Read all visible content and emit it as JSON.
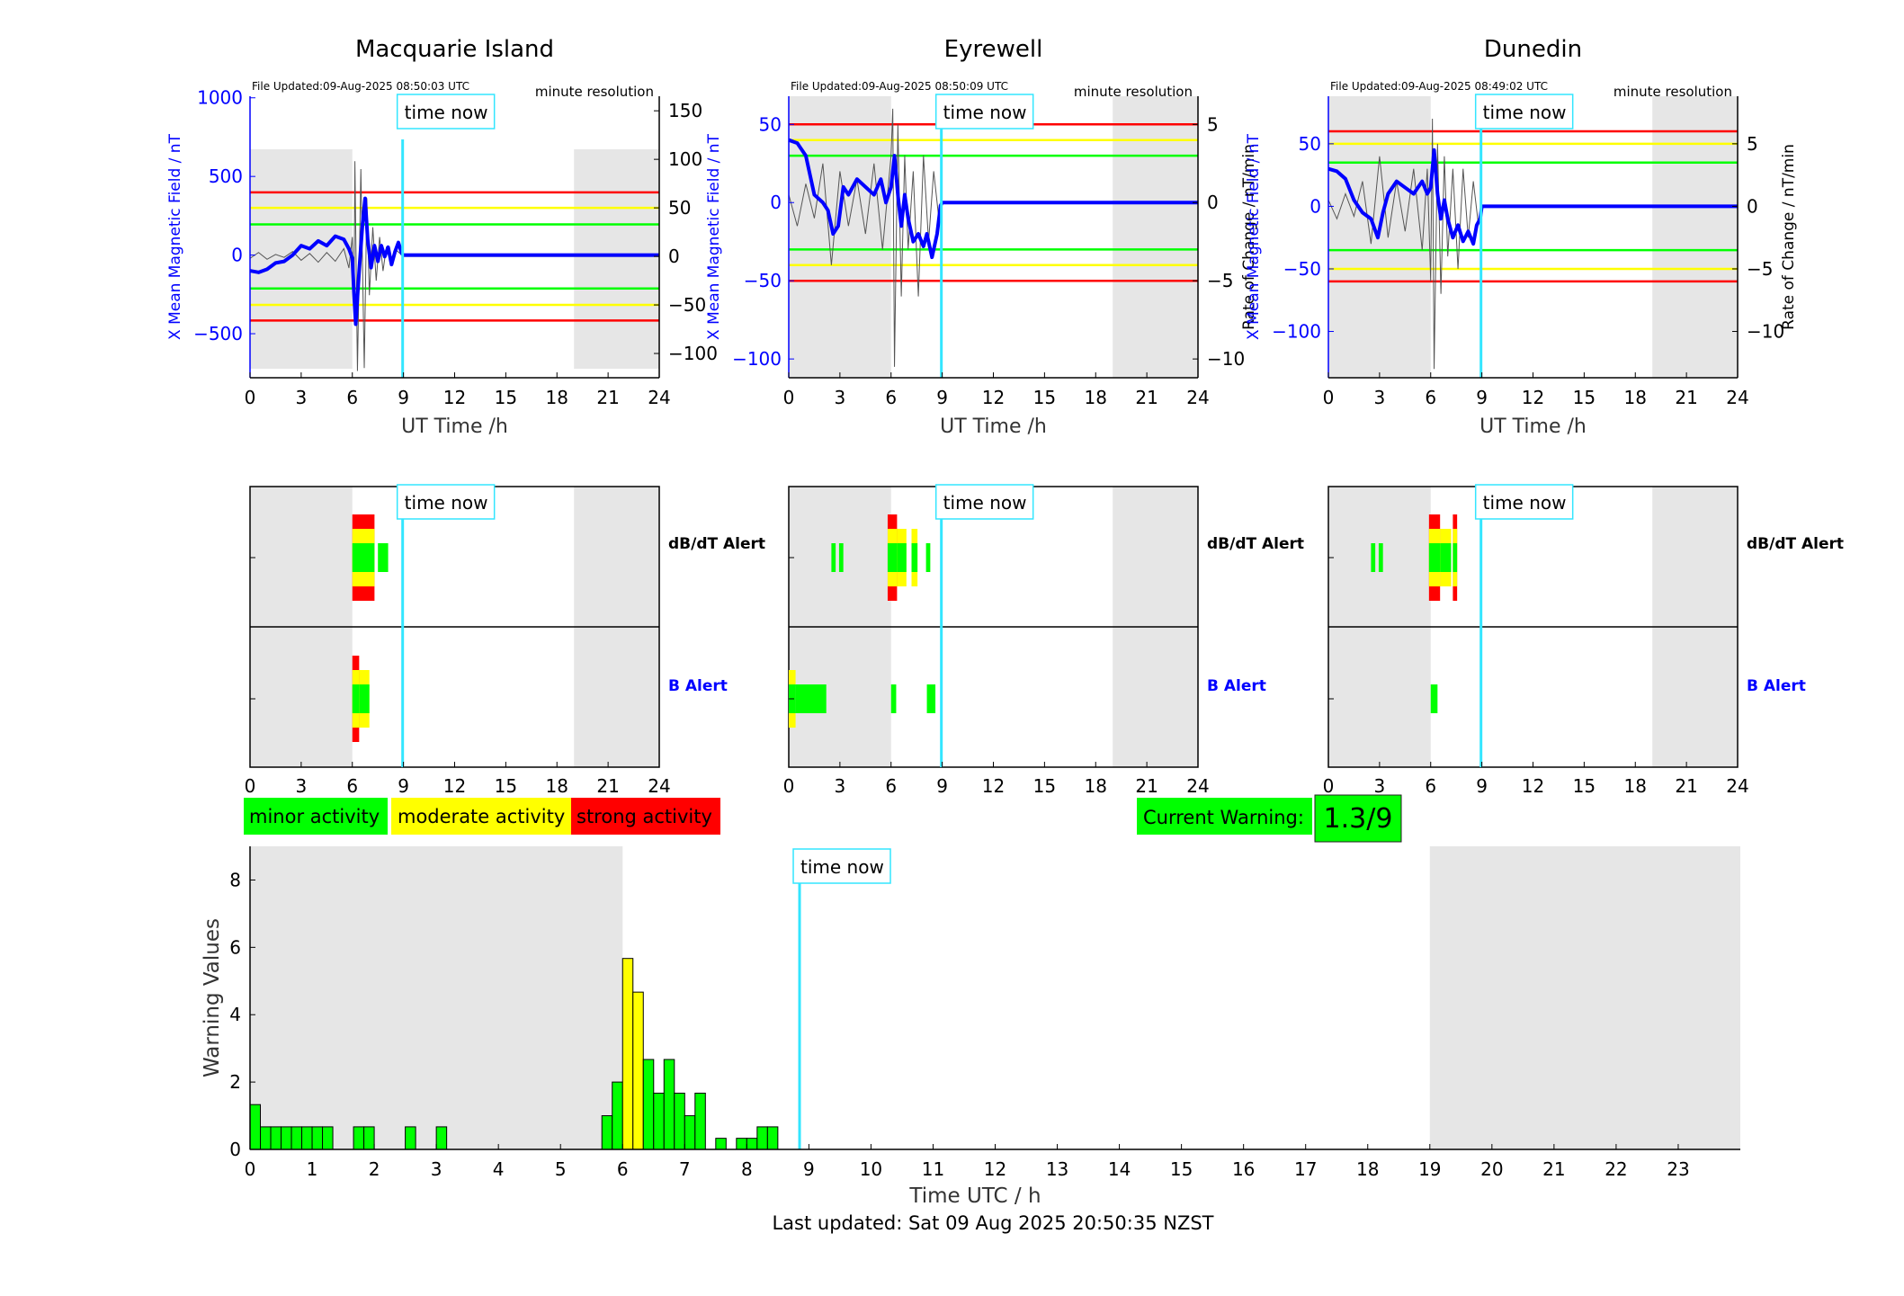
{
  "colors": {
    "shade": "#e6e6e6",
    "blue": "#0000ff",
    "cyan": "#33e6ff",
    "red": "#ff0000",
    "yellow": "#ffff00",
    "green": "#00ff00",
    "black": "#000000"
  },
  "legend": {
    "minor": "minor activity",
    "moderate": "moderate activity",
    "strong": "strong activity"
  },
  "current_warning": {
    "label": "Current Warning:",
    "value": "1.3/9"
  },
  "footer": "Last updated: Sat 09 Aug 2025 20:50:35 NZST",
  "chart_data": [
    {
      "type": "line",
      "title": "Macquarie Island",
      "file_updated": "File Updated:09-Aug-2025 08:50:03 UTC",
      "resolution": "minute resolution",
      "time_now_label": "time now",
      "time_now": 8.95,
      "xlabel": "UT Time /h",
      "ylabel_left": "X Mean Magnetic Field / nT",
      "ylabel_right": "",
      "xlim": [
        0,
        24
      ],
      "xticks": [
        0,
        3,
        6,
        9,
        12,
        15,
        18,
        21,
        24
      ],
      "ylim_left": [
        -780,
        1010
      ],
      "yticks_left": [
        -500,
        0,
        500,
        1000
      ],
      "ylim_right": [
        -125,
        165
      ],
      "yticks_right": [
        -100,
        -50,
        0,
        50,
        100,
        150
      ],
      "night_shading": [
        [
          0,
          6
        ],
        [
          19,
          24
        ]
      ],
      "thresholds_right": {
        "red": 66,
        "yellow": 50,
        "green": 33
      },
      "series_x_mean": [
        [
          0,
          -100
        ],
        [
          0.5,
          -110
        ],
        [
          1,
          -90
        ],
        [
          1.5,
          -50
        ],
        [
          2,
          -40
        ],
        [
          2.5,
          0
        ],
        [
          3,
          60
        ],
        [
          3.5,
          40
        ],
        [
          4,
          90
        ],
        [
          4.5,
          60
        ],
        [
          5,
          120
        ],
        [
          5.5,
          100
        ],
        [
          5.8,
          40
        ],
        [
          6,
          -20
        ],
        [
          6.1,
          -250
        ],
        [
          6.2,
          -440
        ],
        [
          6.4,
          -100
        ],
        [
          6.6,
          200
        ],
        [
          6.75,
          360
        ],
        [
          6.9,
          100
        ],
        [
          7.1,
          -80
        ],
        [
          7.3,
          60
        ],
        [
          7.5,
          -40
        ],
        [
          7.7,
          60
        ],
        [
          7.9,
          -10
        ],
        [
          8.1,
          50
        ],
        [
          8.3,
          -60
        ],
        [
          8.5,
          20
        ],
        [
          8.7,
          80
        ],
        [
          8.9,
          10
        ],
        [
          9,
          0
        ],
        [
          24,
          0
        ]
      ],
      "series_rate_of_change": [
        [
          0,
          -2
        ],
        [
          0.5,
          4
        ],
        [
          1,
          -3
        ],
        [
          1.5,
          2
        ],
        [
          2,
          -1
        ],
        [
          2.5,
          5
        ],
        [
          3,
          -4
        ],
        [
          3.5,
          3
        ],
        [
          4,
          -6
        ],
        [
          4.5,
          4
        ],
        [
          5,
          -5
        ],
        [
          5.5,
          8
        ],
        [
          5.8,
          -12
        ],
        [
          6,
          20
        ],
        [
          6.1,
          -55
        ],
        [
          6.15,
          98
        ],
        [
          6.3,
          -118
        ],
        [
          6.5,
          90
        ],
        [
          6.7,
          -115
        ],
        [
          6.85,
          60
        ],
        [
          7,
          -40
        ],
        [
          7.2,
          30
        ],
        [
          7.4,
          -25
        ],
        [
          7.6,
          20
        ],
        [
          7.8,
          -15
        ],
        [
          8,
          10
        ],
        [
          8.3,
          -8
        ],
        [
          8.6,
          6
        ],
        [
          9,
          0
        ],
        [
          24,
          0
        ]
      ],
      "alerts": {
        "dBdT": {
          "label": "dB/dT Alert",
          "bars": [
            {
              "start": 6.0,
              "end": 7.3,
              "level": "strong"
            },
            {
              "start": 7.5,
              "end": 8.1,
              "level": "minor"
            }
          ]
        },
        "B": {
          "label": "B Alert",
          "bars": [
            {
              "start": 6.0,
              "end": 6.4,
              "level": "strong"
            },
            {
              "start": 6.4,
              "end": 7.0,
              "level": "moderate"
            }
          ]
        }
      }
    },
    {
      "type": "line",
      "title": "Eyrewell",
      "file_updated": "File Updated:09-Aug-2025 08:50:09 UTC",
      "resolution": "minute resolution",
      "time_now_label": "time now",
      "time_now": 8.95,
      "xlabel": "UT Time /h",
      "ylabel_left": "X Mean Magnetic Field / nT",
      "ylabel_right": "Rate of Change / nT/min",
      "xlim": [
        0,
        24
      ],
      "xticks": [
        0,
        3,
        6,
        9,
        12,
        15,
        18,
        21,
        24
      ],
      "ylim_left": [
        -112,
        68
      ],
      "yticks_left": [
        -100,
        -50,
        0,
        50
      ],
      "ylim_right": [
        -11.2,
        6.8
      ],
      "yticks_right": [
        -10,
        -5,
        0,
        5
      ],
      "night_shading": [
        [
          0,
          6
        ],
        [
          19,
          24
        ]
      ],
      "thresholds_right": {
        "red": 5,
        "yellow": 4,
        "green": 3
      },
      "series_x_mean": [
        [
          0,
          40
        ],
        [
          0.5,
          38
        ],
        [
          1,
          30
        ],
        [
          1.5,
          5
        ],
        [
          2,
          0
        ],
        [
          2.3,
          -5
        ],
        [
          2.6,
          -20
        ],
        [
          2.9,
          -15
        ],
        [
          3.2,
          10
        ],
        [
          3.5,
          5
        ],
        [
          4,
          15
        ],
        [
          4.5,
          10
        ],
        [
          5,
          5
        ],
        [
          5.4,
          15
        ],
        [
          5.7,
          0
        ],
        [
          6,
          10
        ],
        [
          6.2,
          30
        ],
        [
          6.4,
          5
        ],
        [
          6.6,
          -15
        ],
        [
          6.8,
          5
        ],
        [
          7,
          -10
        ],
        [
          7.3,
          -25
        ],
        [
          7.6,
          -20
        ],
        [
          7.9,
          -28
        ],
        [
          8.1,
          -20
        ],
        [
          8.4,
          -35
        ],
        [
          8.7,
          -20
        ],
        [
          8.9,
          -2
        ],
        [
          9,
          0
        ],
        [
          24,
          0
        ]
      ],
      "series_rate_of_change": [
        [
          0,
          0.5
        ],
        [
          0.5,
          -1.5
        ],
        [
          1,
          1.2
        ],
        [
          1.5,
          -1
        ],
        [
          2,
          2.5
        ],
        [
          2.5,
          -4
        ],
        [
          3,
          2
        ],
        [
          3.5,
          -1.5
        ],
        [
          4,
          1.5
        ],
        [
          4.5,
          -2
        ],
        [
          5,
          2.5
        ],
        [
          5.5,
          -3
        ],
        [
          6,
          3
        ],
        [
          6.1,
          6
        ],
        [
          6.2,
          -10.5
        ],
        [
          6.4,
          5
        ],
        [
          6.6,
          -6
        ],
        [
          6.8,
          3
        ],
        [
          7,
          -3
        ],
        [
          7.3,
          2
        ],
        [
          7.6,
          -6
        ],
        [
          7.9,
          3
        ],
        [
          8.2,
          -2.5
        ],
        [
          8.5,
          2
        ],
        [
          8.8,
          -1
        ],
        [
          9,
          0
        ],
        [
          24,
          0
        ]
      ],
      "alerts": {
        "dBdT": {
          "label": "dB/dT Alert",
          "bars": [
            {
              "start": 2.5,
              "end": 2.75,
              "level": "minor"
            },
            {
              "start": 2.95,
              "end": 3.2,
              "level": "minor"
            },
            {
              "start": 5.8,
              "end": 6.35,
              "level": "strong"
            },
            {
              "start": 6.35,
              "end": 6.9,
              "level": "moderate"
            },
            {
              "start": 7.2,
              "end": 7.55,
              "level": "moderate"
            },
            {
              "start": 8.05,
              "end": 8.3,
              "level": "minor"
            }
          ]
        },
        "B": {
          "label": "B Alert",
          "bars": [
            {
              "start": 0.0,
              "end": 0.4,
              "level": "moderate"
            },
            {
              "start": 0.4,
              "end": 2.2,
              "level": "minor"
            },
            {
              "start": 6.0,
              "end": 6.3,
              "level": "minor"
            },
            {
              "start": 8.1,
              "end": 8.6,
              "level": "minor"
            }
          ]
        }
      }
    },
    {
      "type": "line",
      "title": "Dunedin",
      "file_updated": "File Updated:09-Aug-2025 08:49:02 UTC",
      "resolution": "minute resolution",
      "time_now_label": "time now",
      "time_now": 8.95,
      "xlabel": "UT Time /h",
      "ylabel_left": "X Mean Magnetic Field / nT",
      "ylabel_right": "Rate of Change / nT/min",
      "xlim": [
        0,
        24
      ],
      "xticks": [
        0,
        3,
        6,
        9,
        12,
        15,
        18,
        21,
        24
      ],
      "ylim_left": [
        -137,
        88
      ],
      "yticks_left": [
        -100,
        -50,
        0,
        50
      ],
      "ylim_right": [
        -13.7,
        8.8
      ],
      "yticks_right": [
        -10,
        -5,
        0,
        5
      ],
      "night_shading": [
        [
          0,
          6
        ],
        [
          19,
          24
        ]
      ],
      "thresholds_right": {
        "red": 6,
        "yellow": 5,
        "green": 3.5
      },
      "series_x_mean": [
        [
          0,
          30
        ],
        [
          0.5,
          28
        ],
        [
          1,
          22
        ],
        [
          1.5,
          5
        ],
        [
          2,
          -5
        ],
        [
          2.5,
          -10
        ],
        [
          2.9,
          -25
        ],
        [
          3.2,
          -5
        ],
        [
          3.5,
          10
        ],
        [
          4,
          20
        ],
        [
          4.5,
          15
        ],
        [
          5,
          10
        ],
        [
          5.5,
          20
        ],
        [
          5.8,
          10
        ],
        [
          6,
          15
        ],
        [
          6.2,
          45
        ],
        [
          6.4,
          10
        ],
        [
          6.6,
          -10
        ],
        [
          6.8,
          5
        ],
        [
          7,
          -10
        ],
        [
          7.3,
          -25
        ],
        [
          7.6,
          -15
        ],
        [
          7.9,
          -28
        ],
        [
          8.2,
          -20
        ],
        [
          8.5,
          -30
        ],
        [
          8.7,
          -15
        ],
        [
          8.9,
          -10
        ],
        [
          9,
          0
        ],
        [
          24,
          0
        ]
      ],
      "series_rate_of_change": [
        [
          0,
          0.5
        ],
        [
          0.5,
          -1
        ],
        [
          1,
          1
        ],
        [
          1.5,
          -0.8
        ],
        [
          2,
          2
        ],
        [
          2.5,
          -3
        ],
        [
          3,
          4
        ],
        [
          3.5,
          -2.5
        ],
        [
          4,
          2
        ],
        [
          4.5,
          -2
        ],
        [
          5,
          3
        ],
        [
          5.5,
          -3.5
        ],
        [
          5.8,
          3
        ],
        [
          6,
          -6
        ],
        [
          6.1,
          7
        ],
        [
          6.2,
          -13
        ],
        [
          6.4,
          5
        ],
        [
          6.6,
          -7
        ],
        [
          6.8,
          4
        ],
        [
          7,
          -4
        ],
        [
          7.3,
          3
        ],
        [
          7.6,
          -5
        ],
        [
          7.9,
          3
        ],
        [
          8.2,
          -2.5
        ],
        [
          8.5,
          2
        ],
        [
          8.8,
          -1.5
        ],
        [
          9,
          0
        ],
        [
          24,
          0
        ]
      ],
      "alerts": {
        "dBdT": {
          "label": "dB/dT Alert",
          "bars": [
            {
              "start": 2.5,
              "end": 2.75,
              "level": "minor"
            },
            {
              "start": 2.95,
              "end": 3.2,
              "level": "minor"
            },
            {
              "start": 5.9,
              "end": 6.55,
              "level": "strong"
            },
            {
              "start": 6.55,
              "end": 7.2,
              "level": "moderate"
            },
            {
              "start": 7.3,
              "end": 7.55,
              "level": "strong"
            }
          ]
        },
        "B": {
          "label": "B Alert",
          "bars": [
            {
              "start": 6.0,
              "end": 6.4,
              "level": "minor"
            }
          ]
        }
      }
    },
    {
      "type": "bar",
      "title": "",
      "time_now_label": "time now",
      "time_now": 8.85,
      "xlabel": "Time UTC / h",
      "ylabel": "Warning Values",
      "xlim": [
        0,
        24
      ],
      "xticks": [
        0,
        1,
        2,
        3,
        4,
        5,
        6,
        7,
        8,
        9,
        10,
        11,
        12,
        13,
        14,
        15,
        16,
        17,
        18,
        19,
        20,
        21,
        22,
        23
      ],
      "ylim": [
        0,
        9
      ],
      "yticks": [
        0,
        2,
        4,
        6,
        8
      ],
      "night_shading": [
        [
          0,
          6
        ],
        [
          19,
          24
        ]
      ],
      "bar_width": 0.1667,
      "bars": [
        {
          "x": 0.0,
          "value": 1.33,
          "level": "minor"
        },
        {
          "x": 0.1667,
          "value": 0.67,
          "level": "minor"
        },
        {
          "x": 0.3333,
          "value": 0.67,
          "level": "minor"
        },
        {
          "x": 0.5,
          "value": 0.67,
          "level": "minor"
        },
        {
          "x": 0.6667,
          "value": 0.67,
          "level": "minor"
        },
        {
          "x": 0.8333,
          "value": 0.67,
          "level": "minor"
        },
        {
          "x": 1.0,
          "value": 0.67,
          "level": "minor"
        },
        {
          "x": 1.1667,
          "value": 0.67,
          "level": "minor"
        },
        {
          "x": 1.6667,
          "value": 0.67,
          "level": "minor"
        },
        {
          "x": 1.8333,
          "value": 0.67,
          "level": "minor"
        },
        {
          "x": 2.5,
          "value": 0.67,
          "level": "minor"
        },
        {
          "x": 3.0,
          "value": 0.67,
          "level": "minor"
        },
        {
          "x": 5.6667,
          "value": 1.0,
          "level": "minor"
        },
        {
          "x": 5.8333,
          "value": 2.0,
          "level": "minor"
        },
        {
          "x": 6.0,
          "value": 5.67,
          "level": "moderate"
        },
        {
          "x": 6.1667,
          "value": 4.67,
          "level": "moderate"
        },
        {
          "x": 6.3333,
          "value": 2.67,
          "level": "minor"
        },
        {
          "x": 6.5,
          "value": 1.67,
          "level": "minor"
        },
        {
          "x": 6.6667,
          "value": 2.67,
          "level": "minor"
        },
        {
          "x": 6.8333,
          "value": 1.67,
          "level": "minor"
        },
        {
          "x": 7.0,
          "value": 1.0,
          "level": "minor"
        },
        {
          "x": 7.1667,
          "value": 1.67,
          "level": "minor"
        },
        {
          "x": 7.5,
          "value": 0.33,
          "level": "minor"
        },
        {
          "x": 7.8333,
          "value": 0.33,
          "level": "minor"
        },
        {
          "x": 8.0,
          "value": 0.33,
          "level": "minor"
        },
        {
          "x": 8.1667,
          "value": 0.67,
          "level": "minor"
        },
        {
          "x": 8.3333,
          "value": 0.67,
          "level": "minor"
        }
      ]
    }
  ]
}
